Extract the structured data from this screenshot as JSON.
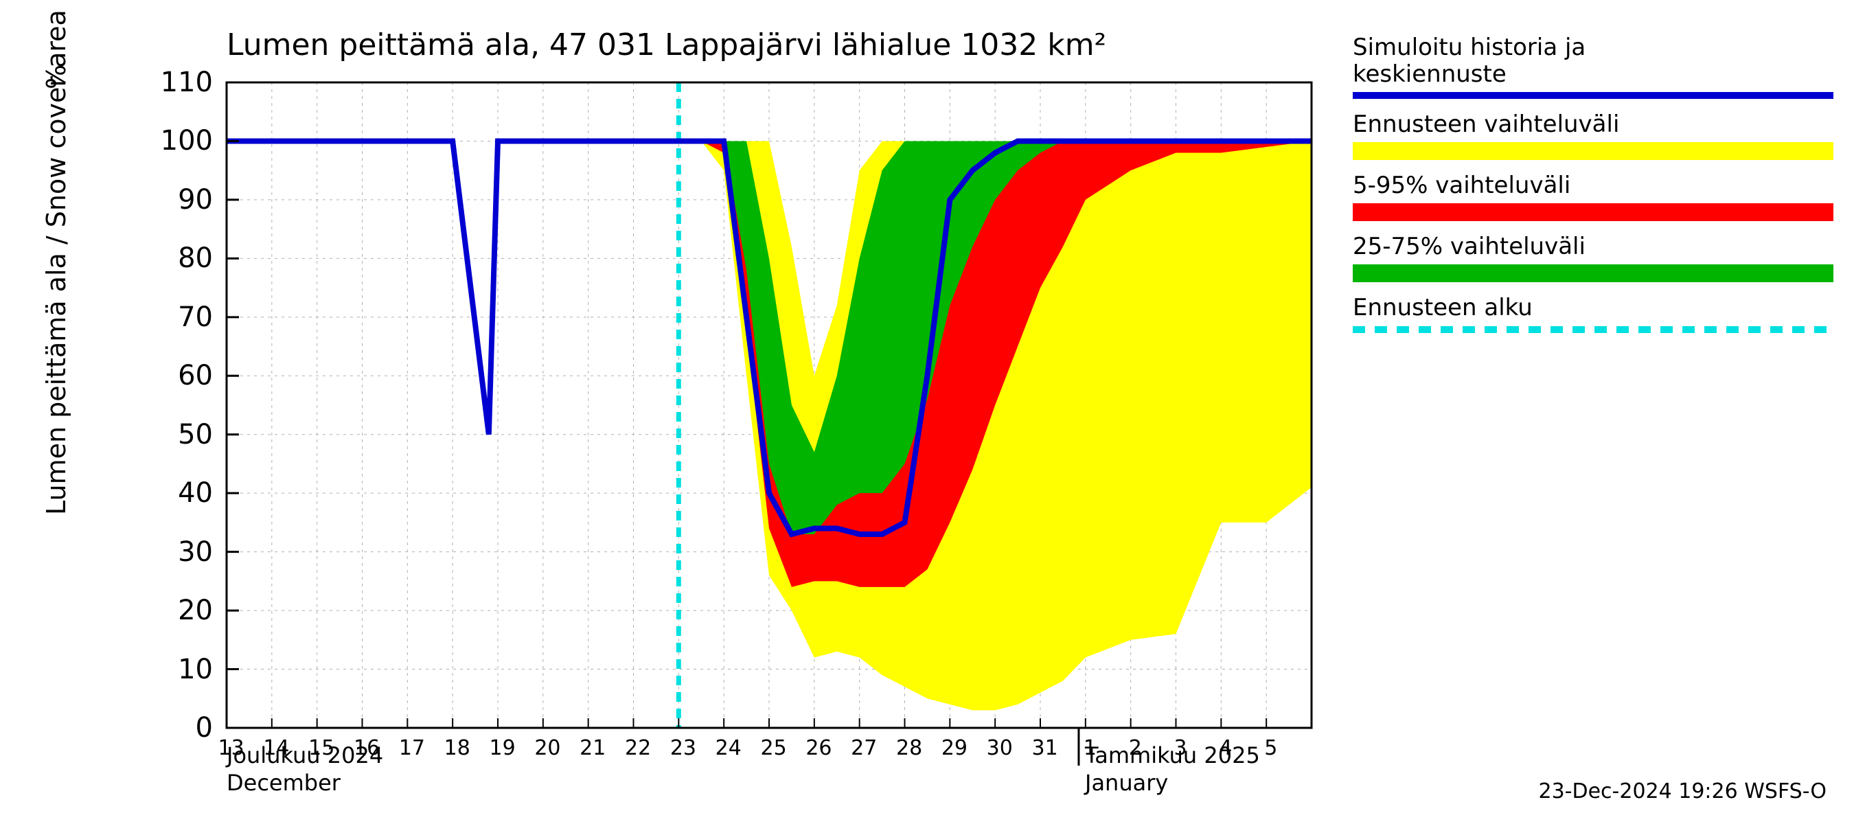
{
  "title": "Lumen peittämä ala, 47 031 Lappajärvi lähialue 1032 km²",
  "y_axis_label": "Lumen peittämä ala / Snow cover area",
  "y_axis_unit": "%",
  "footer": "23-Dec-2024 19:26 WSFS-O",
  "month_left": "Joulukuu  2024\nDecember",
  "month_right": "Tammikuu  2025\nJanuary",
  "chart": {
    "type": "line+area",
    "x_days": [
      "13",
      "14",
      "15",
      "16",
      "17",
      "18",
      "19",
      "20",
      "21",
      "22",
      "23",
      "24",
      "25",
      "26",
      "27",
      "28",
      "29",
      "30",
      "31",
      "1",
      "2",
      "3",
      "4",
      "5",
      ""
    ],
    "x_indices_with_month_tick": 19,
    "ylim": [
      0,
      110
    ],
    "ytick_step": 10,
    "background_color": "#ffffff",
    "grid_color": "#b0b0b0",
    "axis_color": "#000000",
    "axis_width": 3,
    "title_fontsize": 44,
    "label_fontsize": 38,
    "tick_fontsize_y": 40,
    "tick_fontsize_x": 30,
    "forecast_start_x": 10,
    "colors": {
      "yellow": "#ffff00",
      "red": "#ff0000",
      "green": "#00b400",
      "blue": "#0000d0",
      "cyan": "#00e0e0"
    },
    "blue_line_width": 8,
    "cyan_dash": "14 10",
    "cyan_width": 7,
    "series": {
      "x": [
        0,
        1,
        2,
        3,
        4,
        5,
        5.8,
        6,
        7,
        8,
        9,
        10,
        10.5,
        11,
        11.5,
        12,
        12.5,
        13,
        13.5,
        14,
        14.5,
        15,
        15.5,
        16,
        16.5,
        17,
        17.5,
        18,
        18.5,
        19,
        20,
        21,
        22,
        23,
        24
      ],
      "blue": [
        100,
        100,
        100,
        100,
        100,
        100,
        50,
        100,
        100,
        100,
        100,
        100,
        100,
        100,
        70,
        40,
        33,
        34,
        34,
        33,
        33,
        35,
        60,
        90,
        95,
        98,
        100,
        100,
        100,
        100,
        100,
        100,
        100,
        100,
        100
      ],
      "yel_hi": [
        100,
        100,
        100,
        100,
        100,
        100,
        100,
        100,
        100,
        100,
        100,
        100,
        100,
        100,
        100,
        100,
        82,
        60,
        72,
        95,
        100,
        100,
        100,
        100,
        100,
        100,
        100,
        100,
        100,
        100,
        100,
        100,
        100,
        100,
        100
      ],
      "yel_lo": [
        100,
        100,
        100,
        100,
        100,
        100,
        100,
        100,
        100,
        100,
        100,
        100,
        100,
        95,
        60,
        26,
        20,
        12,
        13,
        12,
        9,
        7,
        5,
        4,
        3,
        3,
        4,
        6,
        8,
        12,
        15,
        16,
        35,
        35,
        41
      ],
      "red_hi": [
        100,
        100,
        100,
        100,
        100,
        100,
        100,
        100,
        100,
        100,
        100,
        100,
        100,
        100,
        98,
        72,
        47,
        38,
        42,
        58,
        78,
        95,
        100,
        100,
        100,
        100,
        100,
        100,
        100,
        100,
        100,
        100,
        100,
        100,
        100
      ],
      "red_lo": [
        100,
        100,
        100,
        100,
        100,
        100,
        100,
        100,
        100,
        100,
        100,
        100,
        100,
        98,
        68,
        34,
        24,
        25,
        25,
        24,
        24,
        24,
        27,
        35,
        44,
        55,
        65,
        75,
        82,
        90,
        95,
        98,
        98,
        99,
        100
      ],
      "grn_hi": [
        100,
        100,
        100,
        100,
        100,
        100,
        100,
        100,
        100,
        100,
        100,
        100,
        100,
        100,
        100,
        80,
        55,
        47,
        60,
        80,
        95,
        100,
        100,
        100,
        100,
        100,
        100,
        100,
        100,
        100,
        100,
        100,
        100,
        100,
        100
      ],
      "grn_lo": [
        100,
        100,
        100,
        100,
        100,
        100,
        100,
        100,
        100,
        100,
        100,
        100,
        100,
        100,
        78,
        45,
        33,
        33,
        38,
        40,
        40,
        45,
        56,
        72,
        82,
        90,
        95,
        98,
        100,
        100,
        100,
        100,
        100,
        100,
        100
      ]
    }
  },
  "legend": [
    {
      "label": "Simuloitu historia ja\nkeskiennuste",
      "type": "line",
      "color": "#0000d0"
    },
    {
      "label": "Ennusteen vaihteluväli",
      "type": "block",
      "color": "#ffff00"
    },
    {
      "label": "5-95% vaihteluväli",
      "type": "block",
      "color": "#ff0000"
    },
    {
      "label": "25-75% vaihteluväli",
      "type": "block",
      "color": "#00b400"
    },
    {
      "label": "Ennusteen alku",
      "type": "dash",
      "color": "#00e0e0"
    }
  ]
}
